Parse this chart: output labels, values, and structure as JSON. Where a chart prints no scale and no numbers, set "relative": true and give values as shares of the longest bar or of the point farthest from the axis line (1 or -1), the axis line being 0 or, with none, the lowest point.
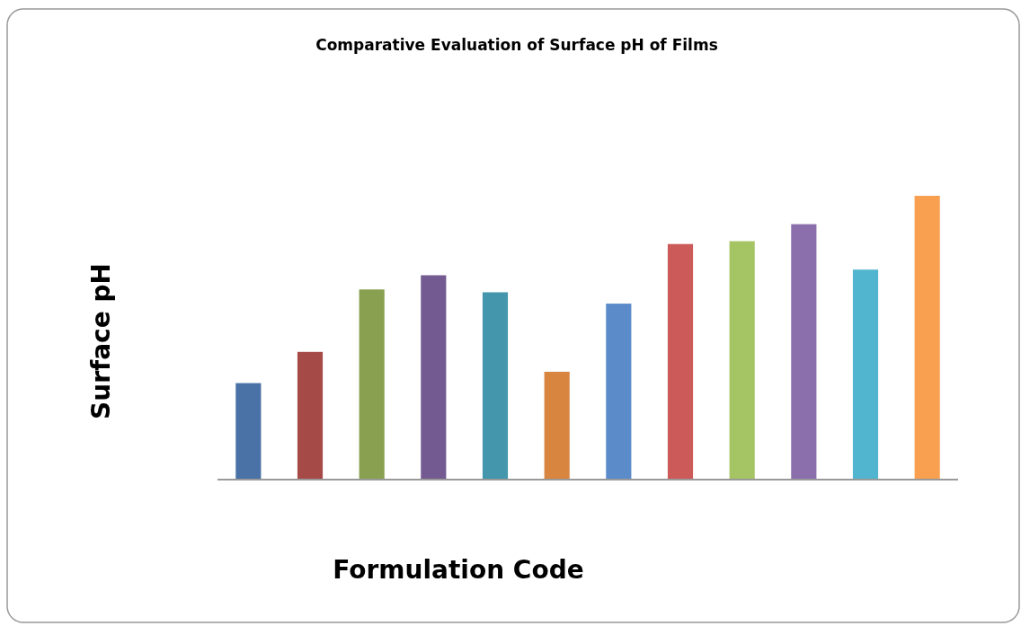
{
  "chart_data": {
    "type": "bar",
    "title": "Comparative Evaluation of Surface pH of Films",
    "xlabel": "Formulation Code",
    "ylabel": "Surface  pH",
    "relative": true,
    "categories": [
      null,
      null,
      null,
      null,
      null,
      null,
      null,
      null,
      null,
      null,
      null,
      null
    ],
    "values": [
      0.34,
      0.45,
      0.67,
      0.72,
      0.66,
      0.38,
      0.62,
      0.83,
      0.84,
      0.9,
      0.74,
      1
    ],
    "colors": [
      "#4a72a6",
      "#a64a48",
      "#88a050",
      "#735a91",
      "#4396ab",
      "#d8853f",
      "#5b8bc9",
      "#cc5a58",
      "#a5c463",
      "#8a6fac",
      "#52b5cf",
      "#f9a050"
    ]
  }
}
